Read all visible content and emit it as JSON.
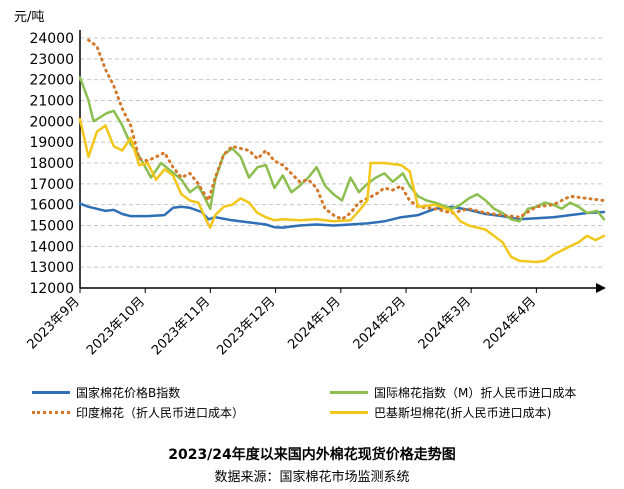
{
  "chart_data": {
    "type": "line",
    "title": "2023/24年度以来国内外棉花现货价格走势图",
    "source": "数据来源：国家棉花市场监测系统",
    "ylabel": "元/吨",
    "ylim": [
      12000,
      24500
    ],
    "yticks": [
      12000,
      13000,
      14000,
      15000,
      16000,
      17000,
      18000,
      19000,
      20000,
      21000,
      22000,
      23000,
      24000
    ],
    "x_range": [
      0,
      31
    ],
    "xticks": [
      {
        "x": 0,
        "label": "2023年9月"
      },
      {
        "x": 3.86,
        "label": "2023年10月"
      },
      {
        "x": 7.71,
        "label": "2023年11月"
      },
      {
        "x": 11.57,
        "label": "2023年12月"
      },
      {
        "x": 15.43,
        "label": "2024年1月"
      },
      {
        "x": 19.29,
        "label": "2024年2月"
      },
      {
        "x": 23.14,
        "label": "2024年3月"
      },
      {
        "x": 27,
        "label": "2024年4月"
      }
    ],
    "grid": true,
    "legend_position": "bottom",
    "series": [
      {
        "name": "国家棉花价格B指数",
        "color": "#2e6fb5",
        "style": "solid",
        "points": [
          [
            0,
            16050
          ],
          [
            0.5,
            15900
          ],
          [
            1,
            15800
          ],
          [
            1.5,
            15700
          ],
          [
            2,
            15750
          ],
          [
            2.5,
            15550
          ],
          [
            3,
            15450
          ],
          [
            4,
            15450
          ],
          [
            5,
            15500
          ],
          [
            5.5,
            15850
          ],
          [
            6,
            15900
          ],
          [
            6.5,
            15850
          ],
          [
            7.2,
            15650
          ],
          [
            7.6,
            15300
          ],
          [
            8,
            15400
          ],
          [
            9,
            15250
          ],
          [
            10,
            15150
          ],
          [
            11,
            15050
          ],
          [
            11.5,
            14920
          ],
          [
            12,
            14900
          ],
          [
            12.5,
            14950
          ],
          [
            13,
            15000
          ],
          [
            14,
            15050
          ],
          [
            15,
            15000
          ],
          [
            16,
            15050
          ],
          [
            17,
            15100
          ],
          [
            18,
            15200
          ],
          [
            19,
            15400
          ],
          [
            20,
            15500
          ],
          [
            21,
            15800
          ],
          [
            22,
            15900
          ],
          [
            23,
            15750
          ],
          [
            24,
            15550
          ],
          [
            25,
            15450
          ],
          [
            26,
            15300
          ],
          [
            27,
            15350
          ],
          [
            28,
            15400
          ],
          [
            29,
            15500
          ],
          [
            30,
            15600
          ],
          [
            31,
            15650
          ]
        ]
      },
      {
        "name": "国际棉花指数（M）折人民币进口成本",
        "color": "#8cbf4f",
        "style": "solid",
        "points": [
          [
            0,
            22100
          ],
          [
            0.5,
            21000
          ],
          [
            0.8,
            20000
          ],
          [
            1.2,
            20200
          ],
          [
            1.6,
            20400
          ],
          [
            2,
            20500
          ],
          [
            2.5,
            19800
          ],
          [
            3,
            18900
          ],
          [
            3.3,
            18600
          ],
          [
            3.8,
            17900
          ],
          [
            4.2,
            17300
          ],
          [
            4.8,
            18000
          ],
          [
            5.4,
            17600
          ],
          [
            6,
            17200
          ],
          [
            6.5,
            16600
          ],
          [
            7,
            16900
          ],
          [
            7.4,
            16300
          ],
          [
            7.7,
            15800
          ],
          [
            8,
            17200
          ],
          [
            8.5,
            18400
          ],
          [
            9,
            18700
          ],
          [
            9.5,
            18300
          ],
          [
            10,
            17300
          ],
          [
            10.5,
            17800
          ],
          [
            11,
            17900
          ],
          [
            11.5,
            16800
          ],
          [
            12,
            17400
          ],
          [
            12.5,
            16600
          ],
          [
            13,
            16900
          ],
          [
            13.5,
            17300
          ],
          [
            14,
            17800
          ],
          [
            14.5,
            16900
          ],
          [
            15,
            16500
          ],
          [
            15.5,
            16200
          ],
          [
            16,
            17300
          ],
          [
            16.5,
            16600
          ],
          [
            17,
            17000
          ],
          [
            17.5,
            17300
          ],
          [
            18,
            17500
          ],
          [
            18.5,
            17100
          ],
          [
            19.1,
            17500
          ],
          [
            19.5,
            16900
          ],
          [
            20,
            16400
          ],
          [
            20.5,
            16200
          ],
          [
            21,
            16100
          ],
          [
            22,
            15800
          ],
          [
            22.5,
            16000
          ],
          [
            23,
            16300
          ],
          [
            23.5,
            16500
          ],
          [
            24,
            16200
          ],
          [
            24.5,
            15800
          ],
          [
            25,
            15600
          ],
          [
            25.5,
            15300
          ],
          [
            26,
            15200
          ],
          [
            26.5,
            15800
          ],
          [
            27,
            15900
          ],
          [
            27.5,
            16100
          ],
          [
            28,
            16000
          ],
          [
            28.5,
            15800
          ],
          [
            29,
            16100
          ],
          [
            29.5,
            15900
          ],
          [
            30,
            15600
          ],
          [
            30.6,
            15700
          ],
          [
            31,
            15300
          ]
        ]
      },
      {
        "name": "印度棉花（折人民币进口成本）",
        "color": "#d4782a",
        "style": "dotted",
        "points": [
          [
            0.5,
            23900
          ],
          [
            1,
            23600
          ],
          [
            1.5,
            22500
          ],
          [
            2,
            21700
          ],
          [
            2.5,
            20600
          ],
          [
            3,
            19800
          ],
          [
            3.5,
            18200
          ],
          [
            4,
            18100
          ],
          [
            4.5,
            18300
          ],
          [
            5,
            18500
          ],
          [
            5.5,
            17800
          ],
          [
            6,
            17300
          ],
          [
            6.5,
            17500
          ],
          [
            7,
            17000
          ],
          [
            7.6,
            16200
          ],
          [
            8,
            17300
          ],
          [
            8.5,
            18400
          ],
          [
            9,
            18800
          ],
          [
            9.5,
            18700
          ],
          [
            10,
            18600
          ],
          [
            10.5,
            18200
          ],
          [
            11,
            18600
          ],
          [
            11.5,
            18100
          ],
          [
            12,
            17900
          ],
          [
            12.5,
            17500
          ],
          [
            13,
            17100
          ],
          [
            13.5,
            17200
          ],
          [
            14,
            16800
          ],
          [
            14.5,
            15800
          ],
          [
            15,
            15500
          ],
          [
            15.5,
            15300
          ],
          [
            16,
            15600
          ],
          [
            16.5,
            16100
          ],
          [
            17,
            16300
          ],
          [
            17.5,
            16500
          ],
          [
            18,
            16800
          ],
          [
            18.5,
            16700
          ],
          [
            19,
            16900
          ],
          [
            19.5,
            16200
          ],
          [
            20,
            15900
          ],
          [
            21,
            15800
          ],
          [
            22,
            15600
          ],
          [
            23,
            15800
          ],
          [
            24,
            15600
          ],
          [
            25,
            15500
          ],
          [
            26,
            15400
          ],
          [
            27,
            15900
          ],
          [
            28,
            16000
          ],
          [
            29,
            16400
          ],
          [
            30,
            16300
          ],
          [
            31,
            16200
          ]
        ]
      },
      {
        "name": "巴基斯坦棉花(折人民币进口成本)",
        "color": "#f2c71a",
        "style": "solid",
        "points": [
          [
            0,
            20100
          ],
          [
            0.5,
            18300
          ],
          [
            1,
            19500
          ],
          [
            1.5,
            19800
          ],
          [
            2,
            18800
          ],
          [
            2.5,
            18600
          ],
          [
            3,
            19200
          ],
          [
            3.5,
            17900
          ],
          [
            4,
            18000
          ],
          [
            4.5,
            17200
          ],
          [
            5,
            17700
          ],
          [
            5.5,
            17400
          ],
          [
            6,
            16500
          ],
          [
            6.5,
            16200
          ],
          [
            7,
            16100
          ],
          [
            7.5,
            15200
          ],
          [
            7.7,
            14900
          ],
          [
            8,
            15500
          ],
          [
            8.5,
            15900
          ],
          [
            9,
            16000
          ],
          [
            9.5,
            16300
          ],
          [
            10,
            16100
          ],
          [
            10.5,
            15600
          ],
          [
            11,
            15400
          ],
          [
            11.5,
            15250
          ],
          [
            12,
            15300
          ],
          [
            13,
            15250
          ],
          [
            14,
            15300
          ],
          [
            15,
            15200
          ],
          [
            16,
            15250
          ],
          [
            16.5,
            15700
          ],
          [
            17,
            16200
          ],
          [
            17.2,
            18000
          ],
          [
            18,
            18000
          ],
          [
            19,
            17900
          ],
          [
            19.5,
            17600
          ],
          [
            20,
            15900
          ],
          [
            21,
            16000
          ],
          [
            22,
            15700
          ],
          [
            22.5,
            15200
          ],
          [
            23,
            15000
          ],
          [
            24,
            14800
          ],
          [
            25,
            14200
          ],
          [
            25.5,
            13500
          ],
          [
            26,
            13300
          ],
          [
            27,
            13250
          ],
          [
            27.5,
            13300
          ],
          [
            28,
            13600
          ],
          [
            28.5,
            13800
          ],
          [
            29,
            14000
          ],
          [
            29.5,
            14200
          ],
          [
            30,
            14500
          ],
          [
            30.5,
            14300
          ],
          [
            31,
            14500
          ]
        ]
      }
    ]
  }
}
